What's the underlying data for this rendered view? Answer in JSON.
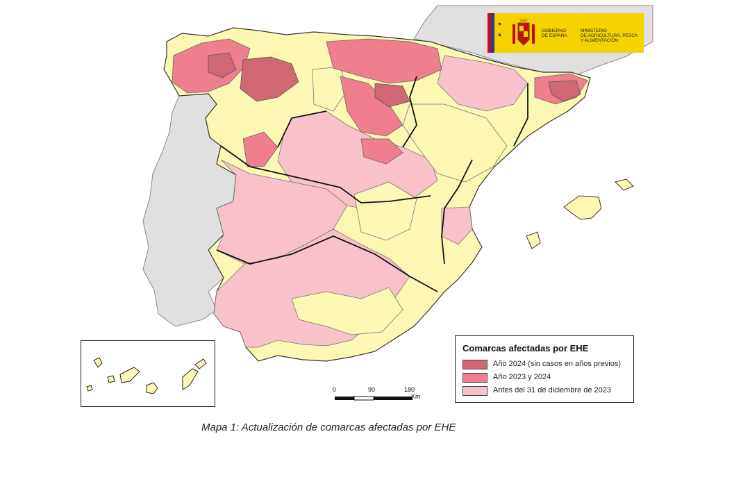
{
  "logo": {
    "government_line1": "GOBIERNO",
    "government_line2": "DE ESPAÑA",
    "ministry_line1": "MINISTERIO",
    "ministry_line2": "DE AGRICULTURA, PESCA",
    "ministry_line3": "Y ALIMENTACIÓN"
  },
  "legend": {
    "title": "Comarcas afectadas por EHE",
    "items": [
      {
        "label": "Año 2024 (sin casos en años previos)",
        "color": "#cf6870"
      },
      {
        "label": "Año 2023 y 2024",
        "color": "#f07f8e"
      },
      {
        "label": "Antes del 31 de diciembre de 2023",
        "color": "#f9c1c9"
      }
    ]
  },
  "scale": {
    "ticks": [
      "0",
      "90",
      "180"
    ],
    "unit": "Km"
  },
  "caption": "Mapa 1: Actualización de comarcas afectadas por EHE",
  "colors": {
    "not_affected": "#fdf7b4",
    "neighbors": "#e0e0e0",
    "border": "#444444"
  }
}
